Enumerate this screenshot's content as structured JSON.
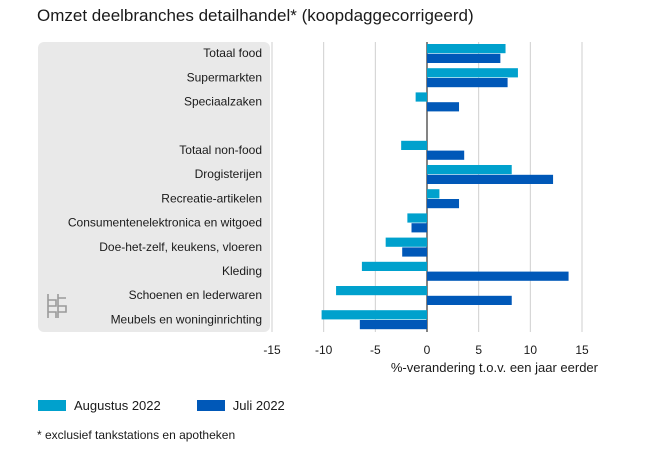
{
  "chart_data": {
    "type": "bar",
    "orientation": "horizontal",
    "title": "Omzet deelbranches detailhandel* (koopdaggecorrigeerd)",
    "xlabel": "%-verandering t.o.v. een jaar eerder",
    "ylabel": "",
    "xlim": [
      -15,
      15
    ],
    "xticks": [
      -15,
      -10,
      -5,
      0,
      5,
      10,
      15
    ],
    "grid": true,
    "legend_position": "bottom-left",
    "categories": [
      "Totaal food",
      "Supermarkten",
      "Speciaalzaken",
      "",
      "Totaal non-food",
      "Drogisterijen",
      "Recreatie-artikelen",
      "Consumentenelektronica en witgoed",
      "Doe-het-zelf, keukens, vloeren",
      "Kleding",
      "Schoenen en lederwaren",
      "Meubels en woninginrichting"
    ],
    "series": [
      {
        "name": "Augustus 2022",
        "color": "#00a1cd",
        "values": [
          7.6,
          8.8,
          -1.1,
          null,
          -2.5,
          8.2,
          1.2,
          -1.9,
          -4.0,
          -6.3,
          -8.8,
          -10.2
        ]
      },
      {
        "name": "Juli 2022",
        "color": "#0058b8",
        "values": [
          7.1,
          7.8,
          3.1,
          null,
          3.6,
          12.2,
          3.1,
          -1.5,
          -2.4,
          13.7,
          8.2,
          -6.5
        ]
      }
    ]
  },
  "footnote": "* exclusief tankstations en apotheken",
  "colors": {
    "panel": "#e9e9e9",
    "grid": "#cfcfcf",
    "axis": "#333333"
  },
  "icon": "cbs-logo-icon"
}
